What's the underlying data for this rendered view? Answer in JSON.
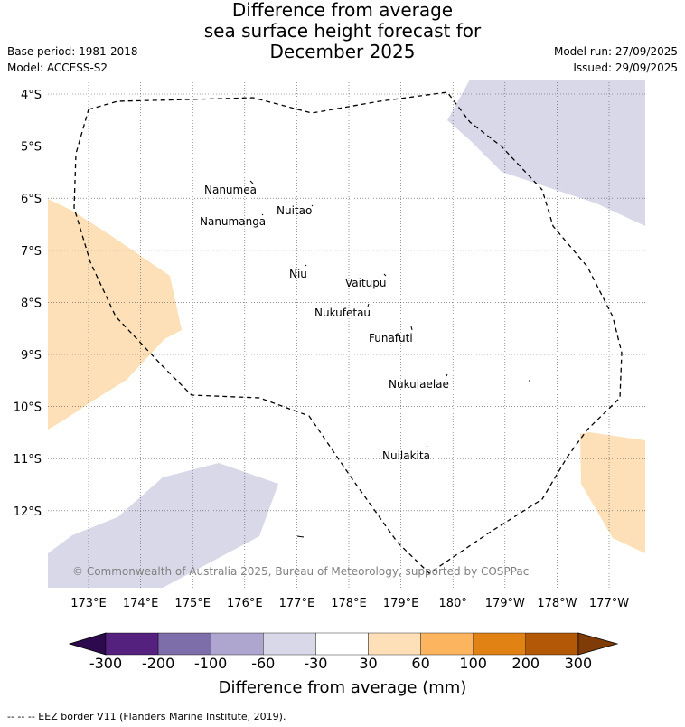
{
  "header": {
    "title_line1": "Difference from average",
    "title_line2": "sea surface height forecast for",
    "title_line3": "December 2025",
    "base_period": "Base period: 1981-2018",
    "model": "Model: ACCESS-S2",
    "model_run": "Model run: 27/09/2025",
    "issued": "Issued: 29/09/2025"
  },
  "map": {
    "lat_labels": [
      "4°S",
      "5°S",
      "6°S",
      "7°S",
      "8°S",
      "9°S",
      "10°S",
      "11°S",
      "12°S"
    ],
    "lon_labels": [
      "173°E",
      "174°E",
      "175°E",
      "176°E",
      "177°E",
      "178°E",
      "179°E",
      "180°",
      "179°W",
      "178°W",
      "177°W"
    ],
    "islands": [
      "Nanumea",
      "Nuitao",
      "Nanumanga",
      "Niu",
      "Vaitupu",
      "Nukufetau",
      "Funafuti",
      "Nukulaelae",
      "Nuilakita"
    ],
    "copyright": "© Commonwealth of Australia 2025, Bureau of Meteorology, supported by COSPPac"
  },
  "colorbar": {
    "ticks": [
      "-300",
      "-200",
      "-100",
      "-60",
      "-30",
      "30",
      "60",
      "100",
      "200",
      "300"
    ],
    "colors": [
      "#2d0a4e",
      "#54217f",
      "#7d6da8",
      "#aea6cf",
      "#d8d8e9",
      "#ffffff",
      "#fde0b7",
      "#fdb45f",
      "#e08214",
      "#b35806",
      "#7f3b08"
    ],
    "title": "Difference from average (mm)"
  },
  "footnote": "--  --  -- EEZ border V11 (Flanders Marine Institute, 2019)."
}
